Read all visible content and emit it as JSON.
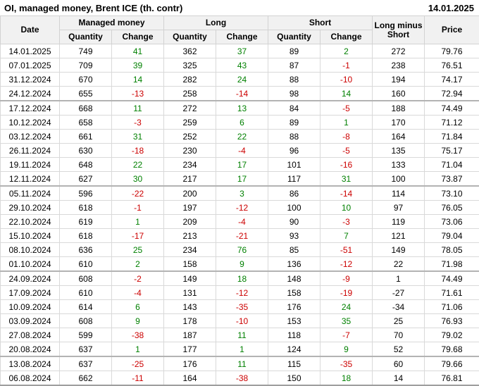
{
  "title": "OI, managed money, Brent ICE (th. contr)",
  "report_date": "14.01.2025",
  "header": {
    "date": "Date",
    "managed_money": "Managed money",
    "long": "Long",
    "short": "Short",
    "long_minus_short": "Long minus Short",
    "price": "Price",
    "quantity": "Quantity",
    "change": "Change"
  },
  "colors": {
    "positive_change": "#008000",
    "negative_change": "#cc0000",
    "header_background": "#f1f1f1",
    "grid_line": "#d9d9d9"
  },
  "chart_data": {
    "type": "table",
    "title": "OI, managed money, Brent ICE (th. contr)",
    "as_of_date": "14.01.2025",
    "columns": [
      "Date",
      "Managed money Quantity",
      "Managed money Change",
      "Long Quantity",
      "Long Change",
      "Short Quantity",
      "Short Change",
      "Long minus Short",
      "Price"
    ],
    "rows": [
      [
        "14.01.2025",
        "749",
        "41",
        "362",
        "37",
        "89",
        "2",
        "272",
        "79.76"
      ],
      [
        "07.01.2025",
        "709",
        "39",
        "325",
        "43",
        "87",
        "-1",
        "238",
        "76.51"
      ],
      [
        "31.12.2024",
        "670",
        "14",
        "282",
        "24",
        "88",
        "-10",
        "194",
        "74.17"
      ],
      [
        "24.12.2024",
        "655",
        "-13",
        "258",
        "-14",
        "98",
        "14",
        "160",
        "72.94"
      ],
      [
        "17.12.2024",
        "668",
        "11",
        "272",
        "13",
        "84",
        "-5",
        "188",
        "74.49"
      ],
      [
        "10.12.2024",
        "658",
        "-3",
        "259",
        "6",
        "89",
        "1",
        "170",
        "71.12"
      ],
      [
        "03.12.2024",
        "661",
        "31",
        "252",
        "22",
        "88",
        "-8",
        "164",
        "71.84"
      ],
      [
        "26.11.2024",
        "630",
        "-18",
        "230",
        "-4",
        "96",
        "-5",
        "135",
        "75.17"
      ],
      [
        "19.11.2024",
        "648",
        "22",
        "234",
        "17",
        "101",
        "-16",
        "133",
        "71.04"
      ],
      [
        "12.11.2024",
        "627",
        "30",
        "217",
        "17",
        "117",
        "31",
        "100",
        "73.87"
      ],
      [
        "05.11.2024",
        "596",
        "-22",
        "200",
        "3",
        "86",
        "-14",
        "114",
        "73.10"
      ],
      [
        "29.10.2024",
        "618",
        "-1",
        "197",
        "-12",
        "100",
        "10",
        "97",
        "76.05"
      ],
      [
        "22.10.2024",
        "619",
        "1",
        "209",
        "-4",
        "90",
        "-3",
        "119",
        "73.06"
      ],
      [
        "15.10.2024",
        "618",
        "-17",
        "213",
        "-21",
        "93",
        "7",
        "121",
        "79.04"
      ],
      [
        "08.10.2024",
        "636",
        "25",
        "234",
        "76",
        "85",
        "-51",
        "149",
        "78.05"
      ],
      [
        "01.10.2024",
        "610",
        "2",
        "158",
        "9",
        "136",
        "-12",
        "22",
        "71.98"
      ],
      [
        "24.09.2024",
        "608",
        "-2",
        "149",
        "18",
        "148",
        "-9",
        "1",
        "74.49"
      ],
      [
        "17.09.2024",
        "610",
        "-4",
        "131",
        "-12",
        "158",
        "-19",
        "-27",
        "71.61"
      ],
      [
        "10.09.2024",
        "614",
        "6",
        "143",
        "-35",
        "176",
        "24",
        "-34",
        "71.06"
      ],
      [
        "03.09.2024",
        "608",
        "9",
        "178",
        "-10",
        "153",
        "35",
        "25",
        "76.93"
      ],
      [
        "27.08.2024",
        "599",
        "-38",
        "187",
        "11",
        "118",
        "-7",
        "70",
        "79.02"
      ],
      [
        "20.08.2024",
        "637",
        "1",
        "177",
        "1",
        "124",
        "9",
        "52",
        "79.68"
      ],
      [
        "13.08.2024",
        "637",
        "-25",
        "176",
        "11",
        "115",
        "-35",
        "60",
        "79.66"
      ],
      [
        "06.08.2024",
        "662",
        "-11",
        "164",
        "-38",
        "150",
        "18",
        "14",
        "76.81"
      ]
    ]
  }
}
